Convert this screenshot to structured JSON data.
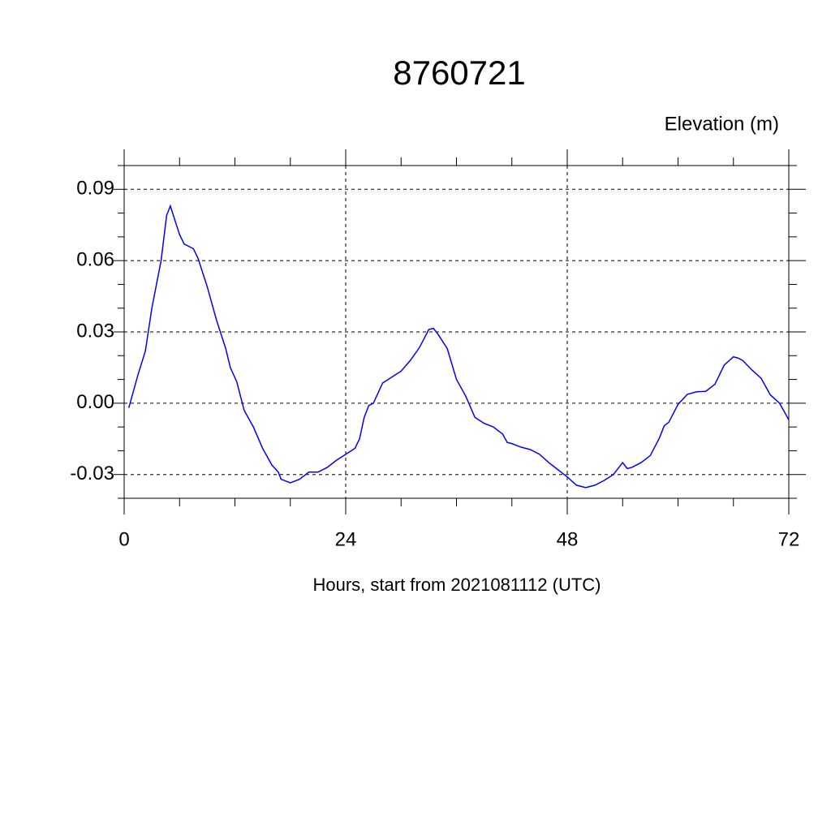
{
  "chart_data": {
    "type": "line",
    "title": "8760721",
    "subtitle": "Elevation (m)",
    "xlabel": "Hours, start from 2021081112 (UTC)",
    "xlim": [
      0,
      72
    ],
    "xticks": [
      0,
      24,
      48,
      72
    ],
    "xticks_minor": [
      6,
      12,
      18,
      30,
      36,
      42,
      54,
      60,
      66
    ],
    "ylim": [
      -0.04,
      0.1
    ],
    "yticks": [
      -0.03,
      {
        "value": 0,
        "label": "0.00"
      },
      0.03,
      0.06,
      0.09
    ],
    "yticks_minor": [
      -0.04,
      -0.02,
      -0.01,
      0.01,
      0.02,
      0.04,
      0.05,
      0.07,
      0.08,
      0.1
    ],
    "grid": true,
    "series": [
      {
        "color": "#0000ff",
        "x": [
          0.5,
          1.5,
          2.3,
          3,
          4,
          4.6,
          5,
          6,
          6.5,
          7.5,
          8,
          9,
          10,
          11,
          11.5,
          12.2,
          13,
          14,
          15,
          16,
          16.7,
          17,
          18,
          19,
          20,
          21,
          22,
          23,
          24,
          25,
          25.5,
          26,
          26.5,
          27,
          28,
          29,
          30,
          31,
          32,
          33,
          33.5,
          34,
          35,
          36,
          37,
          38,
          39,
          40,
          41,
          41.5,
          42,
          43,
          44,
          45,
          46,
          47,
          48,
          49,
          50,
          51,
          52,
          53,
          54,
          54.5,
          55,
          56,
          57,
          58,
          58.5,
          59,
          60,
          61,
          62,
          63,
          64,
          65,
          66,
          66.5,
          67,
          68,
          69,
          70,
          71,
          72
        ],
        "values": [
          -0.002,
          0.012,
          0.022,
          0.04,
          0.06,
          0.079,
          0.083,
          0.071,
          0.067,
          0.065,
          0.061,
          0.049,
          0.035,
          0.023,
          0.015,
          0.009,
          -0.003,
          -0.01,
          -0.019,
          -0.026,
          -0.029,
          -0.032,
          -0.0335,
          -0.032,
          -0.029,
          -0.029,
          -0.027,
          -0.024,
          -0.0215,
          -0.019,
          -0.015,
          -0.006,
          -0.001,
          0,
          0.0085,
          0.011,
          0.0135,
          0.018,
          0.0235,
          0.031,
          0.0315,
          0.029,
          0.023,
          0.01,
          0.003,
          -0.006,
          -0.0085,
          -0.01,
          -0.013,
          -0.0165,
          -0.017,
          -0.0185,
          -0.0195,
          -0.0215,
          -0.025,
          -0.028,
          -0.031,
          -0.0345,
          -0.0355,
          -0.0345,
          -0.0325,
          -0.03,
          -0.025,
          -0.0275,
          -0.027,
          -0.025,
          -0.022,
          -0.0145,
          -0.0095,
          -0.008,
          -0.0005,
          0.0037,
          0.0048,
          0.005,
          0.008,
          0.016,
          0.0195,
          0.019,
          0.018,
          0.014,
          0.0105,
          0.0035,
          0,
          -0.007
        ]
      }
    ]
  }
}
